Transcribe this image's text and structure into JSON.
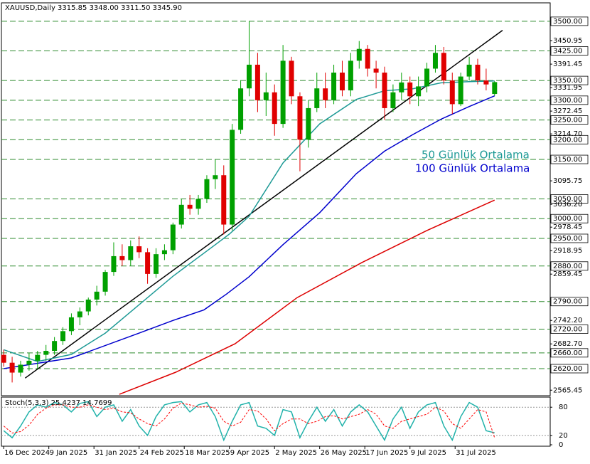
{
  "chart_data": [
    {
      "type": "candlestick",
      "title": "XAUUSD,Daily  3315.85 3348.00 3311.50 3345.90",
      "x": [
        0,
        3,
        6,
        9,
        12,
        15,
        18,
        21,
        24,
        27,
        30,
        33,
        36,
        39,
        42,
        45,
        48,
        51,
        54,
        57,
        60,
        63,
        66,
        69,
        72,
        75,
        78,
        81,
        84,
        87,
        90,
        93,
        96,
        99,
        102,
        105,
        108,
        111,
        114,
        117,
        120,
        123,
        126,
        129,
        132,
        135,
        138,
        141,
        144,
        147,
        150,
        153,
        156,
        159,
        162,
        165,
        168,
        171,
        174
      ],
      "open": [
        2655,
        2635,
        2610,
        2630,
        2640,
        2655,
        2665,
        2690,
        2715,
        2750,
        2765,
        2795,
        2815,
        2865,
        2905,
        2895,
        2930,
        2915,
        2860,
        2910,
        2920,
        2985,
        3035,
        3025,
        3050,
        3100,
        3110,
        2985,
        3225,
        3330,
        3390,
        3300,
        3320,
        3240,
        3400,
        3310,
        3200,
        3280,
        3330,
        3300,
        3370,
        3325,
        3400,
        3430,
        3380,
        3370,
        3280,
        3320,
        3345,
        3310,
        3335,
        3380,
        3420,
        3350,
        3290,
        3360,
        3390,
        3350,
        3315.85
      ],
      "high": [
        2668,
        2650,
        2640,
        2660,
        2665,
        2680,
        2700,
        2725,
        2760,
        2775,
        2800,
        2830,
        2870,
        2940,
        2935,
        2945,
        2955,
        2925,
        2925,
        2935,
        2990,
        3050,
        3060,
        3060,
        3110,
        3150,
        3135,
        3240,
        3350,
        3500,
        3420,
        3370,
        3340,
        3440,
        3410,
        3320,
        3300,
        3370,
        3370,
        3390,
        3400,
        3420,
        3450,
        3440,
        3400,
        3385,
        3340,
        3370,
        3360,
        3360,
        3395,
        3440,
        3435,
        3370,
        3370,
        3410,
        3405,
        3380,
        3348.0
      ],
      "low": [
        2625,
        2585,
        2600,
        2615,
        2620,
        2640,
        2655,
        2680,
        2705,
        2730,
        2755,
        2780,
        2805,
        2855,
        2880,
        2880,
        2900,
        2835,
        2850,
        2895,
        2910,
        2975,
        3010,
        3010,
        3040,
        3075,
        2960,
        2970,
        3215,
        3310,
        3270,
        3260,
        3210,
        3230,
        3290,
        3120,
        3180,
        3270,
        3280,
        3290,
        3310,
        3310,
        3380,
        3360,
        3330,
        3250,
        3270,
        3300,
        3290,
        3285,
        3320,
        3370,
        3340,
        3265,
        3285,
        3350,
        3340,
        3325,
        3311.5
      ],
      "close": [
        2635,
        2610,
        2630,
        2640,
        2655,
        2665,
        2690,
        2715,
        2750,
        2765,
        2795,
        2815,
        2865,
        2905,
        2895,
        2930,
        2915,
        2860,
        2910,
        2920,
        2985,
        3035,
        3025,
        3050,
        3100,
        3110,
        2985,
        3225,
        3330,
        3390,
        3300,
        3320,
        3240,
        3400,
        3310,
        3200,
        3280,
        3330,
        3300,
        3370,
        3325,
        3400,
        3430,
        3380,
        3370,
        3280,
        3320,
        3345,
        3310,
        3335,
        3380,
        3420,
        3350,
        3290,
        3360,
        3390,
        3350,
        3340,
        3345.9
      ],
      "up_color": "#00a000",
      "down_color": "#e00000",
      "series": [
        {
          "name": "50 Günlük Ortalama",
          "color": "#1e9a96",
          "x": [
            0,
            12,
            24,
            36,
            48,
            60,
            75,
            80,
            87,
            99,
            112,
            125,
            135,
            145,
            155,
            165,
            174
          ],
          "values": [
            2668,
            2638,
            2656,
            2710,
            2782,
            2854,
            2934,
            2961,
            3006,
            3141,
            3240,
            3302,
            3324,
            3329,
            3344,
            3347,
            3349
          ]
        },
        {
          "name": "100 Günlük Ortalama",
          "color": "#0000cd",
          "x": [
            0,
            24,
            48,
            60,
            71,
            79,
            87,
            99,
            112,
            125,
            135,
            145,
            155,
            165,
            174
          ],
          "values": [
            2620,
            2647,
            2710,
            2742,
            2769,
            2809,
            2853,
            2934,
            3015,
            3114,
            3171,
            3213,
            3252,
            3284,
            3311
          ]
        },
        {
          "color": "#dd0000",
          "x": [
            41,
            61,
            82,
            104,
            127,
            150,
            174
          ],
          "values": [
            2555,
            2611,
            2683,
            2800,
            2889,
            2970,
            3047
          ]
        }
      ],
      "trendline": {
        "color": "#000000",
        "x": [
          7.6,
          176.8
        ],
        "values": [
          2596,
          3477
        ]
      },
      "xlim": [
        -0.8,
        193.7
      ],
      "ylim": [
        2551.5,
        3546.7
      ],
      "xticks": [
        {
          "value": 0,
          "label": "16 Dec 2024"
        },
        {
          "value": 16,
          "label": "9 Jan 2025"
        },
        {
          "value": 32,
          "label": "31 Jan 2025"
        },
        {
          "value": 48,
          "label": "24 Feb 2025"
        },
        {
          "value": 64,
          "label": "18 Mar 2025"
        },
        {
          "value": 80,
          "label": "9 Apr 2025"
        },
        {
          "value": 96,
          "label": "2 May 2025"
        },
        {
          "value": 112,
          "label": "26 May 2025"
        },
        {
          "value": 128,
          "label": "17 Jun 2025"
        },
        {
          "value": 144,
          "label": "9 Jul 2025"
        },
        {
          "value": 160,
          "label": "31 Jul 2025"
        }
      ],
      "yticks": [
        {
          "value": 3450.95,
          "label": "3450.95"
        },
        {
          "value": 3391.45,
          "label": "3391.45"
        },
        {
          "value": 3331.95,
          "label": "3331.95"
        },
        {
          "value": 3272.45,
          "label": "3272.45"
        },
        {
          "value": 3214.7,
          "label": "3214.70"
        },
        {
          "value": 3095.75,
          "label": "3095.75"
        },
        {
          "value": 3036.2,
          "label": "3036.20"
        },
        {
          "value": 2978.45,
          "label": "2978.45"
        },
        {
          "value": 2918.95,
          "label": "2918.95"
        },
        {
          "value": 2859.45,
          "label": "2859.45"
        },
        {
          "value": 2742.2,
          "label": "2742.20"
        },
        {
          "value": 2682.7,
          "label": "2682.70"
        },
        {
          "value": 2565.45,
          "label": "2565.45"
        }
      ],
      "levels": [
        {
          "value": 3500,
          "label": "3500.00"
        },
        {
          "value": 3425,
          "label": "3425.00"
        },
        {
          "value": 3350,
          "label": "3350.00"
        },
        {
          "value": 3300,
          "label": "3300.00"
        },
        {
          "value": 3250,
          "label": "3250.00"
        },
        {
          "value": 3200,
          "label": "3200.00"
        },
        {
          "value": 3150,
          "label": "3150.00"
        },
        {
          "value": 3050,
          "label": "3050.00"
        },
        {
          "value": 3000,
          "label": "3000.00"
        },
        {
          "value": 2950,
          "label": "2950.00"
        },
        {
          "value": 2880,
          "label": "2880.00"
        },
        {
          "value": 2790,
          "label": "2790.00"
        },
        {
          "value": 2720,
          "label": "2720.00"
        },
        {
          "value": 2660,
          "label": "2660.00"
        },
        {
          "value": 2620,
          "label": "2620.00"
        }
      ],
      "level_color": "#2e8b2e"
    },
    {
      "type": "line",
      "title": "Stoch(5,3,3) 25.4237 14.7699",
      "x": [
        0,
        3,
        6,
        9,
        12,
        15,
        18,
        21,
        24,
        27,
        30,
        33,
        36,
        39,
        42,
        45,
        48,
        51,
        54,
        57,
        60,
        63,
        66,
        69,
        72,
        75,
        78,
        81,
        84,
        87,
        90,
        93,
        96,
        99,
        102,
        105,
        108,
        111,
        114,
        117,
        120,
        123,
        126,
        129,
        132,
        135,
        138,
        141,
        144,
        147,
        150,
        153,
        156,
        159,
        162,
        165,
        168,
        171,
        174
      ],
      "series": [
        {
          "color": "#20b2aa",
          "values": [
            30,
            15,
            40,
            70,
            85,
            80,
            90,
            85,
            70,
            88,
            92,
            60,
            80,
            85,
            50,
            75,
            40,
            20,
            60,
            85,
            90,
            92,
            70,
            85,
            90,
            60,
            10,
            50,
            85,
            90,
            40,
            35,
            20,
            75,
            70,
            15,
            50,
            80,
            50,
            75,
            40,
            70,
            85,
            70,
            40,
            10,
            55,
            80,
            35,
            70,
            85,
            90,
            40,
            10,
            60,
            90,
            80,
            30,
            25.4237
          ]
        },
        {
          "color": "#ff0000",
          "dashed": true,
          "values": [
            40,
            25,
            28,
            42,
            65,
            78,
            85,
            85,
            80,
            80,
            85,
            80,
            75,
            78,
            70,
            68,
            55,
            45,
            40,
            55,
            78,
            89,
            85,
            80,
            82,
            78,
            50,
            40,
            48,
            75,
            72,
            55,
            30,
            45,
            55,
            55,
            45,
            50,
            60,
            62,
            55,
            60,
            65,
            75,
            65,
            40,
            35,
            50,
            55,
            60,
            65,
            80,
            72,
            45,
            35,
            55,
            75,
            70,
            14.7699
          ]
        }
      ],
      "xlim": [
        -0.8,
        193.7
      ],
      "ylim": [
        0,
        100
      ],
      "yticks": [
        0,
        20,
        80
      ],
      "grid_levels": [
        20,
        80
      ]
    }
  ]
}
